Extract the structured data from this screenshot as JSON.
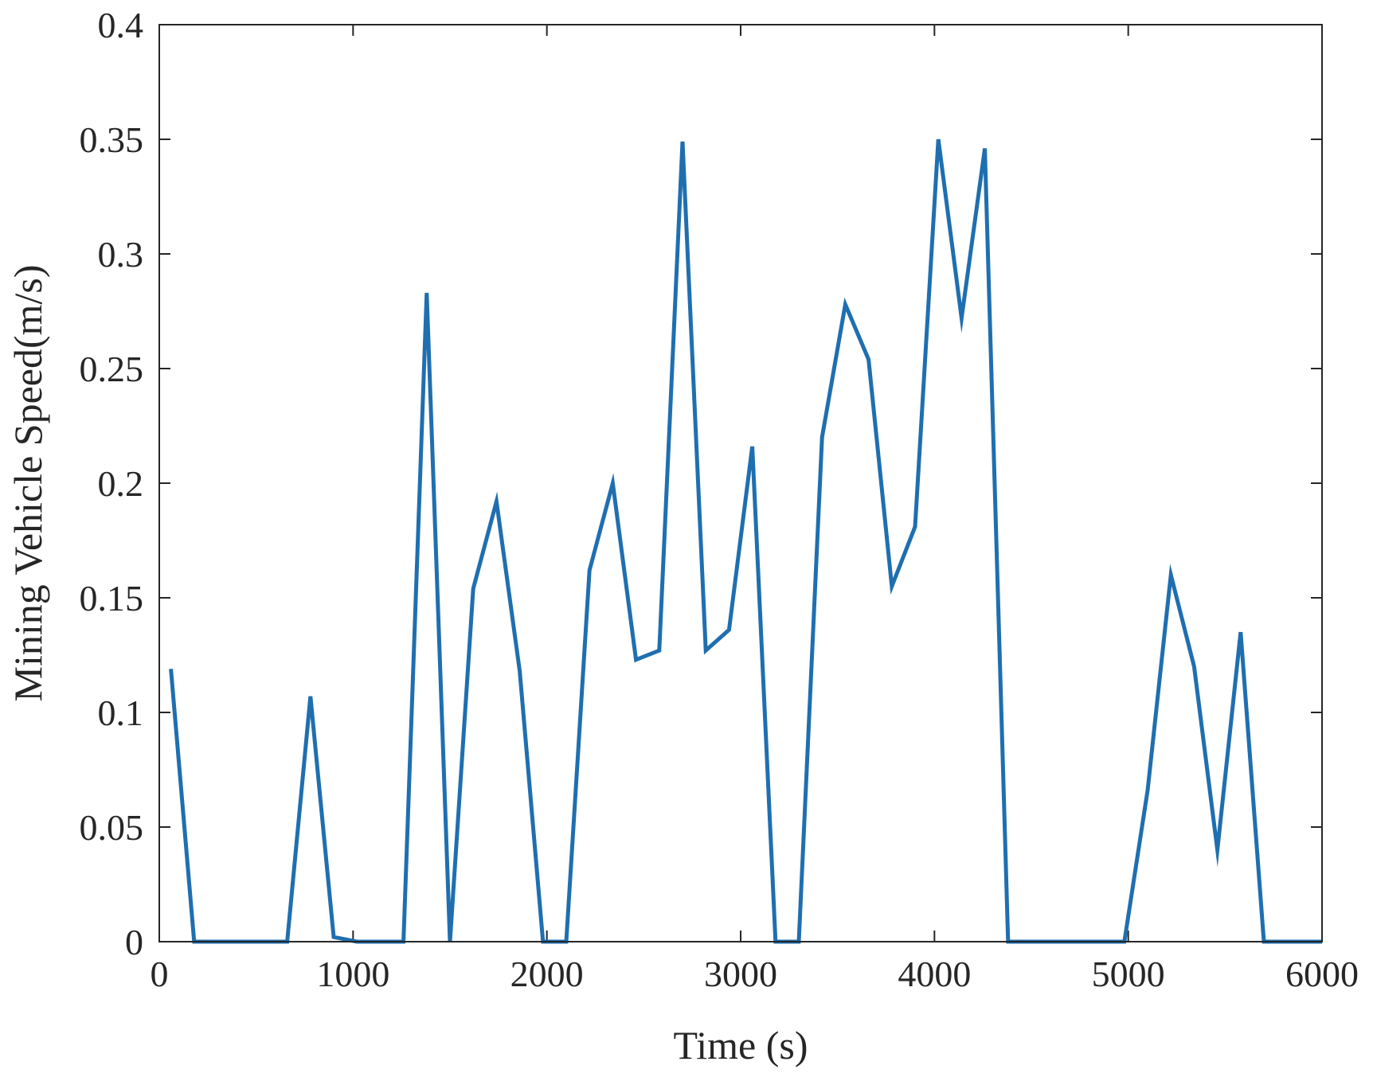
{
  "chart_data": {
    "type": "line",
    "title": "",
    "xlabel": "Time (s)",
    "ylabel": "Mining Vehicle Speed(m/s)",
    "xlim": [
      0,
      6000
    ],
    "ylim": [
      0,
      0.4
    ],
    "grid": false,
    "box": true,
    "x_ticks": [
      0,
      1000,
      2000,
      3000,
      4000,
      5000,
      6000
    ],
    "x_tick_labels": [
      "0",
      "1000",
      "2000",
      "3000",
      "4000",
      "5000",
      "6000"
    ],
    "y_ticks": [
      0,
      0.05,
      0.1,
      0.15,
      0.2,
      0.25,
      0.3,
      0.35,
      0.4
    ],
    "y_tick_labels": [
      "0",
      "0.05",
      "0.1",
      "0.15",
      "0.2",
      "0.25",
      "0.3",
      "0.35",
      "0.4"
    ],
    "series": [
      {
        "color": "#1f6fb0",
        "x": [
          60,
          180,
          660,
          780,
          900,
          1020,
          1140,
          1260,
          1380,
          1500,
          1620,
          1740,
          1860,
          1980,
          2100,
          2220,
          2340,
          2460,
          2580,
          2700,
          2820,
          2940,
          3060,
          3180,
          3300,
          3420,
          3540,
          3660,
          3780,
          3900,
          4020,
          4140,
          4260,
          4380,
          4500,
          4980,
          5100,
          5220,
          5340,
          5460,
          5580,
          5700,
          6000
        ],
        "y": [
          0.119,
          0,
          0,
          0.107,
          0.002,
          0,
          0,
          0,
          0.283,
          0,
          0.154,
          0.192,
          0.118,
          0,
          0,
          0.162,
          0.2,
          0.123,
          0.127,
          0.349,
          0.127,
          0.136,
          0.216,
          0,
          0,
          0.22,
          0.278,
          0.254,
          0.155,
          0.181,
          0.35,
          0.272,
          0.346,
          0,
          0,
          0,
          0.066,
          0.16,
          0.12,
          0.04,
          0.135,
          0,
          0
        ]
      }
    ]
  }
}
